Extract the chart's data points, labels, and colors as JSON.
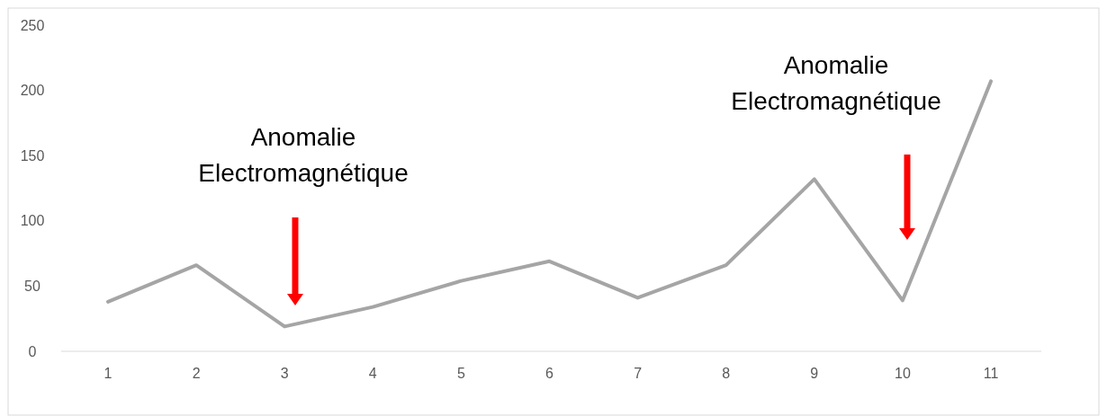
{
  "chart_data": {
    "type": "line",
    "categories": [
      "1",
      "2",
      "3",
      "4",
      "5",
      "6",
      "7",
      "8",
      "9",
      "10",
      "11"
    ],
    "series": [
      {
        "color": "#a5a5a5",
        "values": [
          38,
          66,
          19,
          34,
          54,
          69,
          41,
          66,
          132,
          39,
          207
        ]
      }
    ],
    "ylim": [
      0,
      250
    ],
    "yticks": [
      0,
      50,
      100,
      150,
      200,
      250
    ],
    "grid": false,
    "marker": "none",
    "line_style": "solid",
    "annotations": [
      "Anomalie\nElectromagnétique",
      "Anomalie\nElectromagnétique"
    ]
  }
}
